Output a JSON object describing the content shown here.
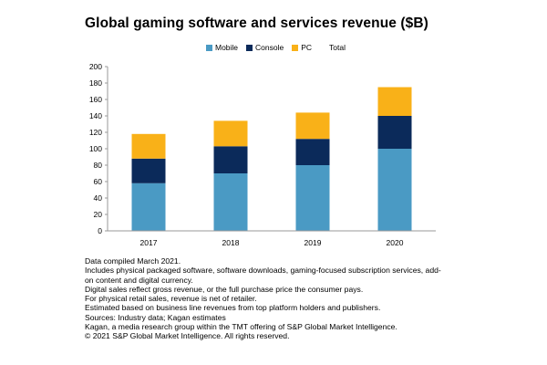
{
  "chart_data": {
    "type": "bar",
    "stacked": true,
    "title": "Global gaming software and services revenue ($B)",
    "categories": [
      "2017",
      "2018",
      "2019",
      "2020"
    ],
    "series": [
      {
        "name": "Mobile",
        "values": [
          58,
          70,
          80,
          100
        ],
        "color": "#4a9ac4"
      },
      {
        "name": "Console",
        "values": [
          30,
          33,
          32,
          40
        ],
        "color": "#0b2a5a"
      },
      {
        "name": "PC",
        "values": [
          30,
          31,
          32,
          35
        ],
        "color": "#f9b118"
      }
    ],
    "total_legend_label": "Total",
    "ylim": [
      0,
      200
    ],
    "yticks": [
      0,
      20,
      40,
      60,
      80,
      100,
      120,
      140,
      160,
      180,
      200
    ],
    "grid": false,
    "legend_position": "top-center"
  },
  "notes": [
    "Data compiled March 2021.",
    "Includes physical packaged software, software downloads, gaming-focused subscription services, add-",
    "on content and digital currency.",
    "Digital sales reflect gross revenue, or the full purchase price the consumer pays.",
    "For physical retail sales, revenue is net of retailer.",
    "Estimated based on business line revenues from top platform holders and publishers.",
    "Sources: Industry data; Kagan estimates",
    "Kagan, a media research group within the TMT offering of S&P Global Market Intelligence.",
    "© 2021 S&P Global Market Intelligence. All rights reserved."
  ]
}
